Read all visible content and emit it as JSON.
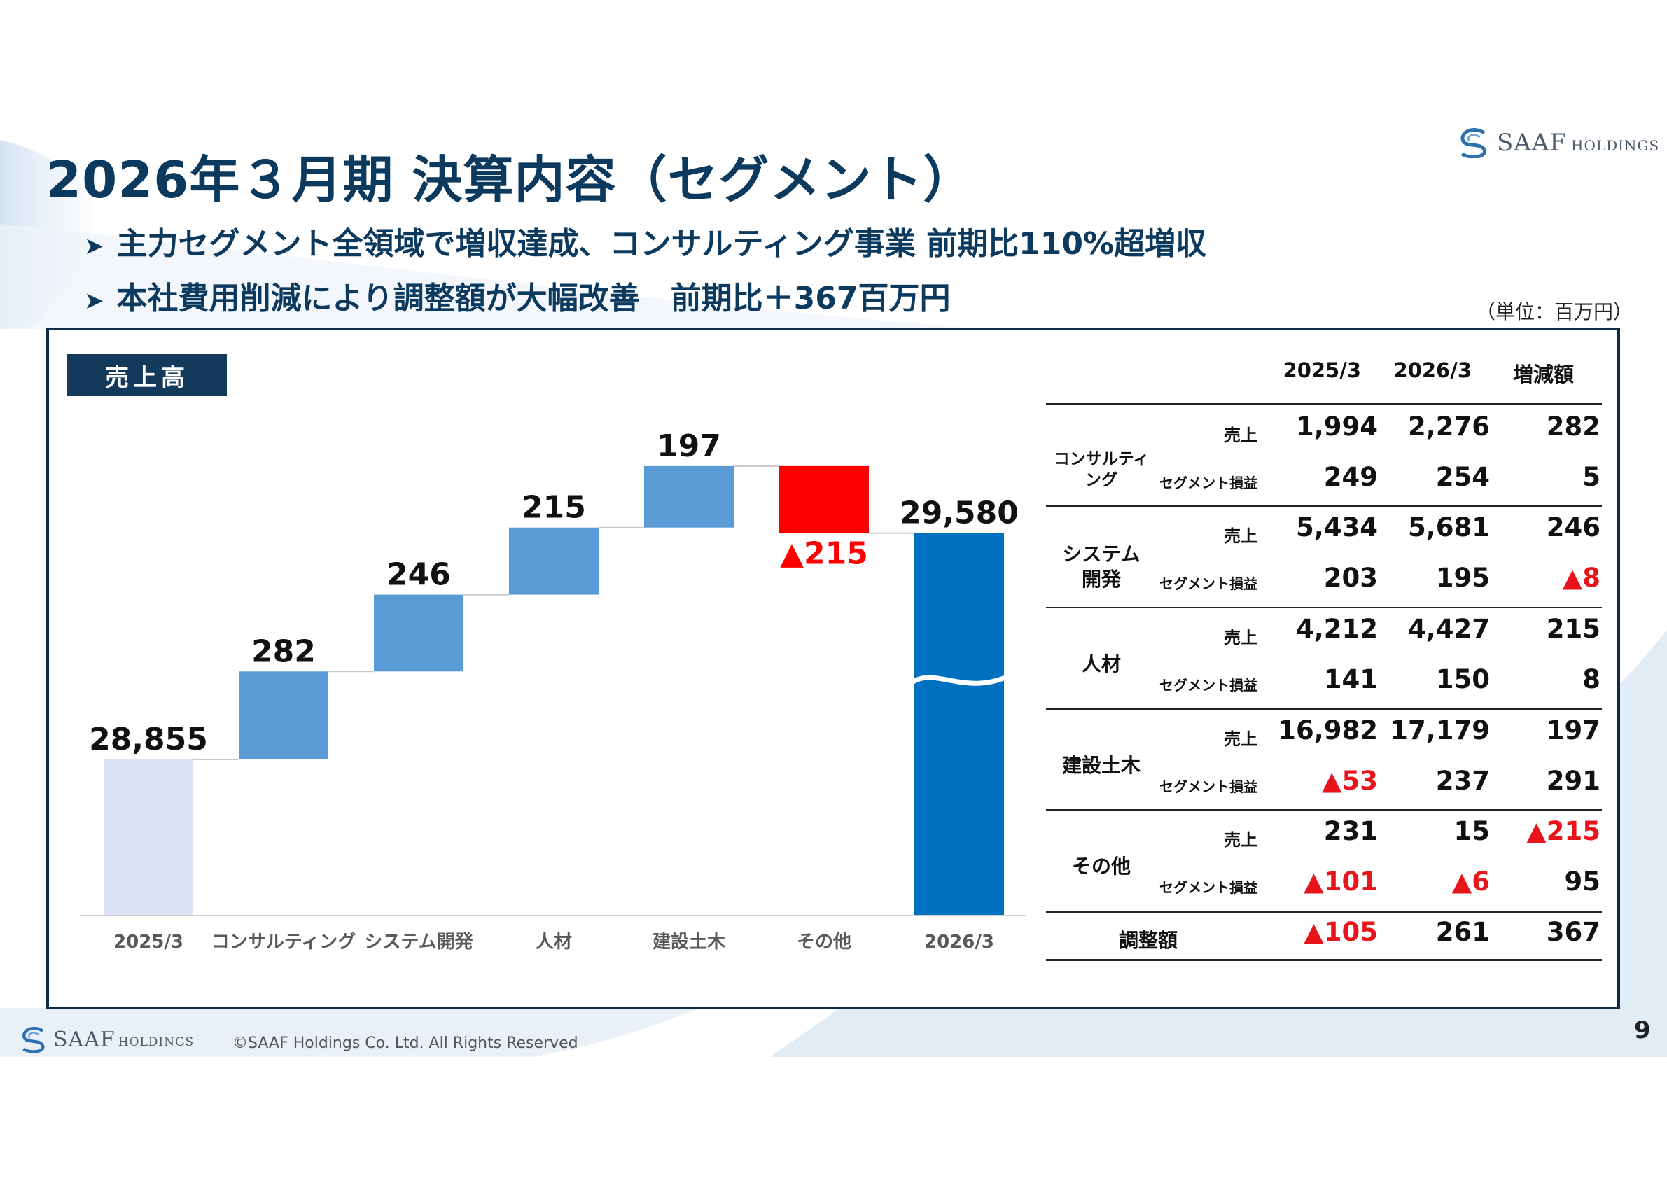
{
  "title": "2026年３月期 決算内容（セグメント）",
  "bullets": [
    "主力セグメント全領域で増収達成、コンサルティング事業 前期比110%超増収",
    "本社費用削減により調整額が大幅改善　前期比＋367百万円"
  ],
  "logo": {
    "brand": "SAAF",
    "suffix": "HOLDINGS"
  },
  "unit_note": "（単位：百万円）",
  "panel_label": "売上高",
  "colors": {
    "navy": "#0c3a5e",
    "bar_light": "#5b9bd5",
    "bar_total": "#0070c0",
    "bar_base": "#dae3f3",
    "negative": "#ff0000"
  },
  "chart_data": {
    "type": "bar",
    "subtype": "waterfall",
    "title": "売上高",
    "categories": [
      "2025/3",
      "コンサルティング",
      "システム開発",
      "人材",
      "建設土木",
      "その他",
      "2026/3"
    ],
    "values": [
      28855,
      282,
      246,
      215,
      197,
      -215,
      29580
    ],
    "value_labels": [
      "28,855",
      "282",
      "246",
      "215",
      "197",
      "▲215",
      "29,580"
    ],
    "axis_break": true
  },
  "table": {
    "headers": [
      "2025/3",
      "2026/3",
      "増減額"
    ],
    "segments": [
      {
        "name_lines": [
          "コンサルティング"
        ],
        "rows": [
          {
            "label": "売上",
            "v2025": "1,994",
            "v2026": "2,276",
            "diff": "282"
          },
          {
            "label": "セグメント損益",
            "v2025": "249",
            "v2026": "254",
            "diff": "5"
          }
        ]
      },
      {
        "name_lines": [
          "システム",
          "開発"
        ],
        "rows": [
          {
            "label": "売上",
            "v2025": "5,434",
            "v2026": "5,681",
            "diff": "246"
          },
          {
            "label": "セグメント損益",
            "v2025": "203",
            "v2026": "195",
            "diff": "▲8"
          }
        ]
      },
      {
        "name_lines": [
          "人材"
        ],
        "rows": [
          {
            "label": "売上",
            "v2025": "4,212",
            "v2026": "4,427",
            "diff": "215"
          },
          {
            "label": "セグメント損益",
            "v2025": "141",
            "v2026": "150",
            "diff": "8"
          }
        ]
      },
      {
        "name_lines": [
          "建設土木"
        ],
        "rows": [
          {
            "label": "売上",
            "v2025": "16,982",
            "v2026": "17,179",
            "diff": "197"
          },
          {
            "label": "セグメント損益",
            "v2025": "▲53",
            "v2026": "237",
            "diff": "291"
          }
        ]
      },
      {
        "name_lines": [
          "その他"
        ],
        "rows": [
          {
            "label": "売上",
            "v2025": "231",
            "v2026": "15",
            "diff": "▲215"
          },
          {
            "label": "セグメント損益",
            "v2025": "▲101",
            "v2026": "▲6",
            "diff": "95"
          }
        ]
      }
    ],
    "adjustment": {
      "label": "調整額",
      "v2025": "▲105",
      "v2026": "261",
      "diff": "367"
    }
  },
  "footer": {
    "copyright": "©SAAF Holdings Co. Ltd. All Rights Reserved",
    "page": "9"
  }
}
